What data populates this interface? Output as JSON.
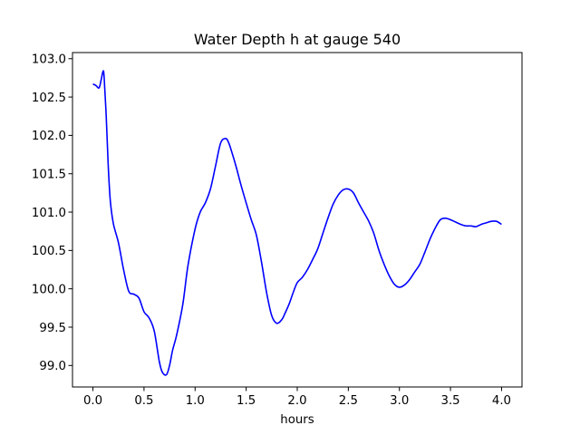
{
  "chart_data": {
    "type": "line",
    "title": "Water Depth h at gauge 540",
    "xlabel": "hours",
    "ylabel": "",
    "xlim": [
      -0.2,
      4.2
    ],
    "ylim": [
      98.72,
      103.08
    ],
    "xticks": [
      0.0,
      0.5,
      1.0,
      1.5,
      2.0,
      2.5,
      3.0,
      3.5,
      4.0
    ],
    "xtick_labels": [
      "0.0",
      "0.5",
      "1.0",
      "1.5",
      "2.0",
      "2.5",
      "3.0",
      "3.5",
      "4.0"
    ],
    "yticks": [
      99.0,
      99.5,
      100.0,
      100.5,
      101.0,
      101.5,
      102.0,
      102.5,
      103.0
    ],
    "ytick_labels": [
      "99.0",
      "99.5",
      "100.0",
      "100.5",
      "101.0",
      "101.5",
      "102.0",
      "102.5",
      "103.0"
    ],
    "grid": false,
    "series": [
      {
        "color": "#0000ff",
        "x": [
          0.0,
          0.03,
          0.06,
          0.08,
          0.1,
          0.11,
          0.13,
          0.15,
          0.17,
          0.2,
          0.25,
          0.3,
          0.35,
          0.4,
          0.45,
          0.5,
          0.55,
          0.6,
          0.65,
          0.68,
          0.72,
          0.75,
          0.78,
          0.82,
          0.88,
          0.93,
          1.0,
          1.05,
          1.1,
          1.15,
          1.2,
          1.25,
          1.3,
          1.33,
          1.36,
          1.4,
          1.45,
          1.5,
          1.55,
          1.6,
          1.65,
          1.7,
          1.75,
          1.8,
          1.85,
          1.88,
          1.92,
          1.96,
          2.0,
          2.05,
          2.1,
          2.15,
          2.2,
          2.25,
          2.3,
          2.35,
          2.4,
          2.45,
          2.5,
          2.55,
          2.6,
          2.65,
          2.7,
          2.75,
          2.8,
          2.85,
          2.9,
          2.95,
          3.0,
          3.05,
          3.1,
          3.15,
          3.2,
          3.25,
          3.3,
          3.35,
          3.4,
          3.45,
          3.5,
          3.55,
          3.6,
          3.65,
          3.7,
          3.75,
          3.8,
          3.85,
          3.9,
          3.95,
          4.0
        ],
        "y": [
          102.67,
          102.65,
          102.62,
          102.72,
          102.84,
          102.75,
          102.25,
          101.6,
          101.15,
          100.85,
          100.6,
          100.25,
          99.97,
          99.93,
          99.88,
          99.7,
          99.62,
          99.45,
          99.05,
          98.91,
          98.88,
          99.0,
          99.2,
          99.4,
          99.8,
          100.3,
          100.78,
          101.0,
          101.12,
          101.3,
          101.6,
          101.9,
          101.96,
          101.9,
          101.78,
          101.6,
          101.35,
          101.12,
          100.9,
          100.7,
          100.35,
          99.95,
          99.65,
          99.55,
          99.6,
          99.68,
          99.8,
          99.95,
          100.08,
          100.15,
          100.25,
          100.38,
          100.52,
          100.72,
          100.92,
          101.1,
          101.22,
          101.29,
          101.3,
          101.25,
          101.12,
          101.0,
          100.88,
          100.72,
          100.5,
          100.32,
          100.17,
          100.06,
          100.02,
          100.05,
          100.12,
          100.22,
          100.32,
          100.48,
          100.65,
          100.79,
          100.9,
          100.92,
          100.9,
          100.87,
          100.84,
          100.82,
          100.82,
          100.81,
          100.84,
          100.86,
          100.88,
          100.88,
          100.84
        ]
      }
    ]
  }
}
